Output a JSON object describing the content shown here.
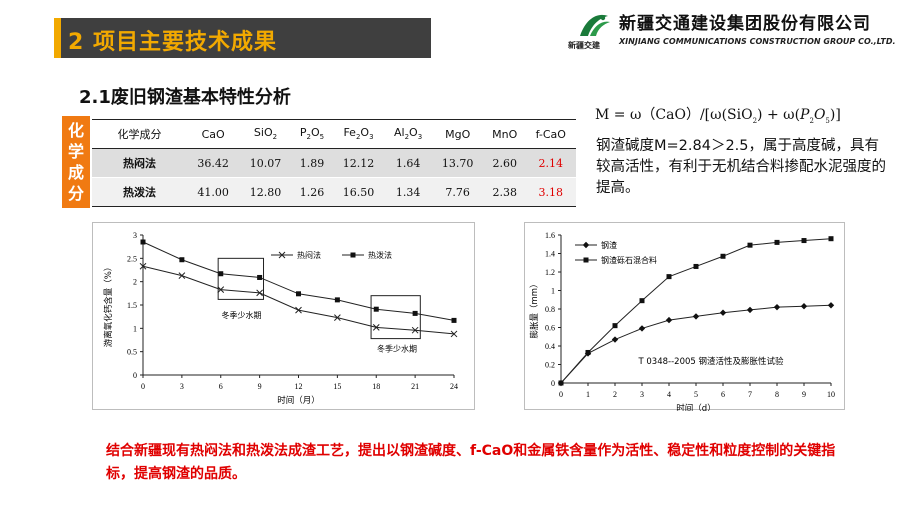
{
  "header": {
    "title": "2 项目主要技术成果",
    "logo_sub": "新疆交建",
    "company_cn": "新疆交通建设集团股份有限公司",
    "company_en": "XINJIANG COMMUNICATIONS CONSTRUCTION  GROUP CO.,LTD.",
    "accent_color": "#f2a900",
    "bar_color": "#3f3f3f"
  },
  "section_title": "2.1废旧钢渣基本特性分析",
  "side_label": [
    "化",
    "学",
    "成",
    "分"
  ],
  "table": {
    "header_label": "化学成分",
    "columns": [
      "CaO",
      "SiO2",
      "P2O5",
      "Fe2O3",
      "Al2O3",
      "MgO",
      "MnO",
      "f-CaO"
    ],
    "rows": [
      {
        "name": "热闷法",
        "values": [
          "36.42",
          "10.07",
          "1.89",
          "12.12",
          "1.64",
          "13.70",
          "2.60",
          "2.14"
        ]
      },
      {
        "name": "热泼法",
        "values": [
          "41.00",
          "12.80",
          "1.26",
          "16.50",
          "1.34",
          "7.76",
          "2.38",
          "3.18"
        ]
      }
    ],
    "highlight_color": "#e00000"
  },
  "formula": {
    "lhs": "M",
    "eq": "=",
    "omega": "ω",
    "cao": "CaO",
    "sio": "SiO",
    "p": "P",
    "o": "O",
    "n2": "2",
    "n5": "5",
    "plus": "+",
    "slash": "/"
  },
  "description": "钢渣碱度M=2.84＞2.5，属于高度碱，具有较高活性，有利于无机结合料掺配水泥强度的提高。",
  "chart_data": [
    {
      "type": "line",
      "xlabel": "时间（月）",
      "ylabel": "游离氧化钙含量（%）",
      "xticks": [
        0,
        3,
        6,
        9,
        12,
        15,
        18,
        21,
        24
      ],
      "yticks": [
        0,
        0.5,
        1,
        1.5,
        2,
        2.5,
        3
      ],
      "xlim": [
        0,
        24
      ],
      "ylim": [
        0,
        3
      ],
      "x": [
        0,
        3,
        6,
        9,
        12,
        15,
        18,
        21,
        24
      ],
      "series": [
        {
          "name": "热闷法",
          "marker": "x",
          "values": [
            2.33,
            2.13,
            1.83,
            1.76,
            1.39,
            1.23,
            1.02,
            0.96,
            0.88
          ]
        },
        {
          "name": "热泼法",
          "marker": "square",
          "values": [
            2.85,
            2.47,
            2.17,
            2.09,
            1.74,
            1.61,
            1.41,
            1.32,
            1.17
          ]
        }
      ],
      "annotations": [
        "冬季少水期",
        "冬季少水期"
      ],
      "legend": "top-right",
      "grid": false
    },
    {
      "type": "line",
      "title": "T 0348--2005 钢渣活性及膨胀性试验",
      "xlabel": "时间（d）",
      "ylabel": "膨胀量（mm）",
      "xticks": [
        0,
        1,
        2,
        3,
        4,
        5,
        6,
        7,
        8,
        9,
        10
      ],
      "yticks": [
        "0",
        "0.2",
        "0.4",
        "0.6",
        "0.8",
        "1",
        "1.2",
        "1.4",
        "1.6"
      ],
      "xlim": [
        0,
        10
      ],
      "ylim": [
        0,
        1.6
      ],
      "x": [
        0,
        1,
        2,
        3,
        4,
        5,
        6,
        7,
        8,
        9,
        10
      ],
      "series": [
        {
          "name": "钢渣",
          "marker": "diamond",
          "values": [
            0,
            0.32,
            0.47,
            0.59,
            0.68,
            0.72,
            0.76,
            0.79,
            0.82,
            0.83,
            0.84
          ]
        },
        {
          "name": "钢渣砾石混合料",
          "marker": "square",
          "values": [
            0,
            0.33,
            0.62,
            0.89,
            1.15,
            1.26,
            1.37,
            1.49,
            1.52,
            1.54,
            1.56
          ]
        }
      ],
      "legend": "top-left",
      "grid": false
    }
  ],
  "conclusion": "结合新疆现有热闷法和热泼法成渣工艺，提出以钢渣碱度、f-CaO和金属铁含量作为活性、稳定性和粒度控制的关键指标，提高钢渣的品质。"
}
